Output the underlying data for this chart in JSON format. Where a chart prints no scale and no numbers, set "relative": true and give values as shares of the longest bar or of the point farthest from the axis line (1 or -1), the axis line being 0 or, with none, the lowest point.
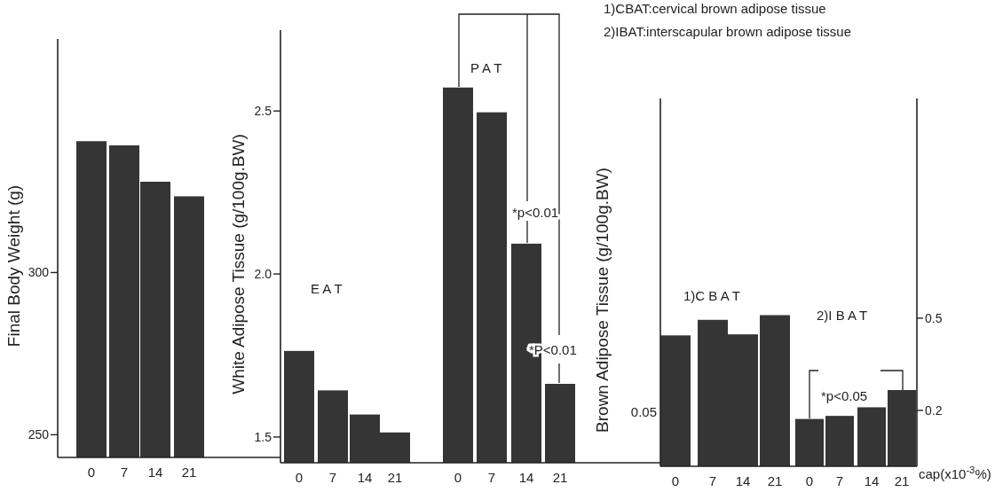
{
  "chart_data": [
    {
      "type": "bar",
      "ylabel": "Final Body Weight (g)",
      "categories": [
        "0",
        "7",
        "14",
        "21"
      ],
      "values": [
        340.5,
        339.2,
        328,
        323.5
      ],
      "color": "#353535",
      "ylim": [
        243,
        372
      ],
      "yticks": [
        250,
        300
      ]
    },
    {
      "type": "bar",
      "ylabel": "White Adipose Tissue (g/100g.BW)",
      "categories": [
        "0",
        "7",
        "14",
        "21",
        "0",
        "7",
        "14",
        "21"
      ],
      "values": [
        1.764,
        1.643,
        1.569,
        1.514,
        2.572,
        2.496,
        2.093,
        1.663
      ],
      "color": "#353535",
      "ylim": [
        1.421,
        2.748
      ],
      "yticks": [
        1.5,
        {
          "value": 2,
          "label": "2.0"
        },
        2.5
      ],
      "annotations": [
        "E A T",
        "P A T",
        {
          "text": "*p<0.01",
          "y": 2.093
        },
        {
          "text": "*P<0.01",
          "y": 1.663
        }
      ]
    },
    {
      "type": "bar",
      "ylabel": "Brown Adipose Tissue (g/100g.BW)",
      "relative": true,
      "categories": [
        "0",
        "7",
        "14",
        "21"
      ],
      "values": [
        0.866,
        0.969,
        0.873,
        1
      ],
      "color": "#353535",
      "annotations": [
        "1)CBAT:cervical brown adipose tissue",
        "2)IBAT:interscapular brown adipose tissue",
        "1)C B A T",
        "0.05"
      ]
    },
    {
      "type": "bar",
      "xlabel": "cap(x10$^{-3}$%)",
      "categories": [
        "0",
        "7",
        "14",
        "21"
      ],
      "series": [
        {
          "color": "#353535",
          "axis": "y2",
          "values": [
            0.172,
            0.182,
            0.21,
            0.266
          ]
        }
      ],
      "y2lim": [
        0.018,
        1.215
      ],
      "y2ticks": [
        0.2,
        0.5
      ],
      "annotations": [
        "2)I B A T",
        "*p<0.05"
      ]
    }
  ]
}
